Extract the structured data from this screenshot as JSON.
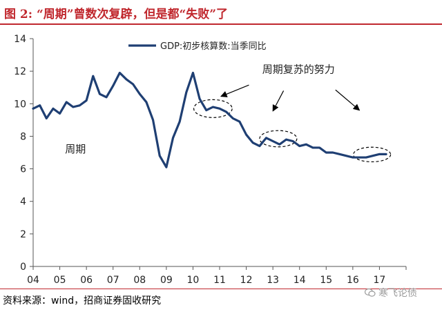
{
  "figure": {
    "title": "图 2: “周期”曾数次复辟，但是都“失败”了",
    "source": "资料来源：wind，招商证券固收研究",
    "watermark": "寒飞论债"
  },
  "chart_data": {
    "type": "line",
    "title": "",
    "xlabel": "",
    "ylabel": "",
    "ylim": [
      0,
      14
    ],
    "yticks": [
      "0",
      "2",
      "4",
      "6",
      "8",
      "10",
      "12",
      "14"
    ],
    "xlim": [
      2004.0,
      2018.0
    ],
    "xticks": [
      "04",
      "05",
      "06",
      "07",
      "08",
      "09",
      "10",
      "11",
      "12",
      "13",
      "14",
      "15",
      "16",
      "17"
    ],
    "grid": false,
    "legend_position": "top",
    "series": [
      {
        "name": "GDP:初步核算数:当季同比",
        "color": "#1f3f73",
        "x": [
          2004.0,
          2004.25,
          2004.5,
          2004.75,
          2005.0,
          2005.25,
          2005.5,
          2005.75,
          2006.0,
          2006.25,
          2006.5,
          2006.75,
          2007.0,
          2007.25,
          2007.5,
          2007.75,
          2008.0,
          2008.25,
          2008.5,
          2008.75,
          2009.0,
          2009.25,
          2009.5,
          2009.75,
          2010.0,
          2010.25,
          2010.5,
          2010.75,
          2011.0,
          2011.25,
          2011.5,
          2011.75,
          2012.0,
          2012.25,
          2012.5,
          2012.75,
          2013.0,
          2013.25,
          2013.5,
          2013.75,
          2014.0,
          2014.25,
          2014.5,
          2014.75,
          2015.0,
          2015.25,
          2015.5,
          2015.75,
          2016.0,
          2016.25,
          2016.5,
          2016.75,
          2017.0,
          2017.25
        ],
        "values": [
          9.7,
          9.9,
          9.1,
          9.7,
          9.4,
          10.1,
          9.8,
          9.9,
          10.2,
          11.7,
          10.6,
          10.4,
          11.1,
          11.9,
          11.5,
          11.2,
          10.6,
          10.1,
          9.0,
          6.8,
          6.1,
          7.9,
          8.9,
          10.7,
          11.9,
          10.3,
          9.6,
          9.8,
          9.7,
          9.5,
          9.1,
          8.9,
          8.1,
          7.6,
          7.4,
          7.9,
          7.7,
          7.5,
          7.8,
          7.7,
          7.4,
          7.5,
          7.3,
          7.3,
          7.0,
          7.0,
          6.9,
          6.8,
          6.7,
          6.7,
          6.7,
          6.8,
          6.9,
          6.9
        ]
      }
    ],
    "annotations": [
      {
        "text": "周期",
        "x": 2005.2,
        "y": 7.0
      },
      {
        "text": "周期复苏的努力",
        "x": 2012.6,
        "y": 11.9
      }
    ],
    "highlight_ellipses": [
      {
        "cx": 2010.75,
        "cy": 9.7,
        "rx": 0.72,
        "ry": 0.55
      },
      {
        "cx": 2013.2,
        "cy": 7.85,
        "rx": 0.7,
        "ry": 0.5
      },
      {
        "cx": 2016.72,
        "cy": 6.88,
        "rx": 0.7,
        "ry": 0.45
      }
    ],
    "arrows": [
      {
        "from": [
          2012.1,
          11.15
        ],
        "to": [
          2011.05,
          10.45
        ]
      },
      {
        "from": [
          2013.4,
          10.8
        ],
        "to": [
          2013.0,
          9.55
        ]
      },
      {
        "from": [
          2015.35,
          10.85
        ],
        "to": [
          2016.25,
          9.6
        ]
      }
    ]
  }
}
